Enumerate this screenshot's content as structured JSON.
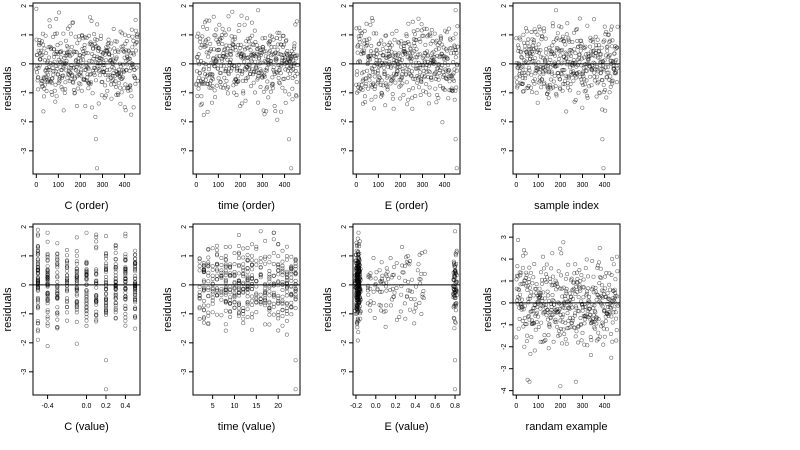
{
  "figure": {
    "point_color": "#000000",
    "panel_layout": "2x4 grid"
  },
  "chart_data": [
    {
      "type": "scatter",
      "xlabel": "C (order)",
      "ylabel": "residuals",
      "xlim": [
        -15,
        470
      ],
      "ylim": [
        -3.8,
        2.1
      ],
      "xticks": [
        0,
        100,
        200,
        300,
        400
      ],
      "xtick_labels": [
        "0",
        "100",
        "200",
        "300",
        "400"
      ],
      "yticks": [
        -3,
        -2,
        -1,
        0,
        1,
        2
      ],
      "ytick_labels": [
        "-3",
        "-2",
        "-1",
        "0",
        "1",
        "2"
      ],
      "reference_line_y": 0,
      "points": {
        "generator": "sequential",
        "n": 460,
        "spread": 0.65,
        "seed": 11
      },
      "outliers": [
        [
          0,
          1.9
        ],
        [
          270,
          -2.6
        ],
        [
          275,
          -3.6
        ]
      ]
    },
    {
      "type": "scatter",
      "xlabel": "time (order)",
      "ylabel": "residuals",
      "xlim": [
        -15,
        470
      ],
      "ylim": [
        -3.8,
        2.1
      ],
      "xticks": [
        0,
        100,
        200,
        300,
        400
      ],
      "xtick_labels": [
        "0",
        "100",
        "200",
        "300",
        "400"
      ],
      "yticks": [
        -3,
        -2,
        -1,
        0,
        1,
        2
      ],
      "ytick_labels": [
        "-3",
        "-2",
        "-1",
        "0",
        "1",
        "2"
      ],
      "reference_line_y": 0,
      "points": {
        "generator": "sequential",
        "n": 460,
        "spread": 0.65,
        "seed": 23
      },
      "outliers": [
        [
          280,
          1.85
        ],
        [
          420,
          -2.6
        ],
        [
          430,
          -3.6
        ]
      ]
    },
    {
      "type": "scatter",
      "xlabel": "E (order)",
      "ylabel": "residuals",
      "xlim": [
        -15,
        470
      ],
      "ylim": [
        -3.8,
        2.1
      ],
      "xticks": [
        0,
        100,
        200,
        300,
        400
      ],
      "xtick_labels": [
        "0",
        "100",
        "200",
        "300",
        "400"
      ],
      "yticks": [
        -3,
        -2,
        -1,
        0,
        1,
        2
      ],
      "ytick_labels": [
        "-3",
        "-2",
        "-1",
        "0",
        "1",
        "2"
      ],
      "reference_line_y": 0,
      "points": {
        "generator": "sequential",
        "n": 460,
        "spread": 0.65,
        "seed": 37
      },
      "outliers": [
        [
          450,
          1.85
        ],
        [
          450,
          -2.6
        ],
        [
          455,
          -3.6
        ]
      ]
    },
    {
      "type": "scatter",
      "xlabel": "sample index",
      "ylabel": "residuals",
      "xlim": [
        -15,
        470
      ],
      "ylim": [
        -3.8,
        2.1
      ],
      "xticks": [
        0,
        100,
        200,
        300,
        400
      ],
      "xtick_labels": [
        "0",
        "100",
        "200",
        "300",
        "400"
      ],
      "yticks": [
        -3,
        -2,
        -1,
        0,
        1,
        2
      ],
      "ytick_labels": [
        "-3",
        "-2",
        "-1",
        "0",
        "1",
        "2"
      ],
      "reference_line_y": 0,
      "points": {
        "generator": "sequential",
        "n": 460,
        "spread": 0.65,
        "seed": 51
      },
      "outliers": [
        [
          180,
          1.85
        ],
        [
          390,
          -2.6
        ],
        [
          395,
          -3.6
        ]
      ]
    },
    {
      "type": "scatter",
      "xlabel": "C (value)",
      "ylabel": "residuals",
      "xlim": [
        -0.55,
        0.55
      ],
      "ylim": [
        -3.8,
        2.1
      ],
      "xticks": [
        -0.4,
        0.0,
        0.2,
        0.4
      ],
      "xtick_labels": [
        "-0.4",
        "0.0",
        "0.2",
        "0.4"
      ],
      "yticks": [
        -3,
        -2,
        -1,
        0,
        1,
        2
      ],
      "ytick_labels": [
        "-3",
        "-2",
        "-1",
        "0",
        "1",
        "2"
      ],
      "reference_line_y": 0,
      "points": {
        "generator": "discrete",
        "n": 460,
        "spread": 0.65,
        "seed": 67,
        "levels": [
          -0.5,
          -0.4,
          -0.3,
          -0.2,
          -0.1,
          0.0,
          0.1,
          0.2,
          0.3,
          0.4,
          0.5
        ]
      },
      "outliers": [
        [
          -0.5,
          1.9
        ],
        [
          0.1,
          1.5
        ],
        [
          0.2,
          -2.6
        ],
        [
          0.2,
          -3.6
        ]
      ]
    },
    {
      "type": "scatter",
      "xlabel": "time (value)",
      "ylabel": "residuals",
      "xlim": [
        0.5,
        25
      ],
      "ylim": [
        -3.8,
        2.1
      ],
      "xticks": [
        5,
        10,
        15,
        20
      ],
      "xtick_labels": [
        "5",
        "10",
        "15",
        "20"
      ],
      "yticks": [
        -3,
        -2,
        -1,
        0,
        1,
        2
      ],
      "ytick_labels": [
        "-3",
        "-2",
        "-1",
        "0",
        "1",
        "2"
      ],
      "reference_line_y": 0,
      "points": {
        "generator": "discrete",
        "n": 460,
        "spread": 0.65,
        "seed": 79,
        "levels": [
          2,
          3,
          4,
          5,
          6,
          7,
          8,
          9,
          10,
          11,
          12,
          13,
          14,
          15,
          16,
          17,
          18,
          19,
          20,
          21,
          22,
          23,
          24
        ]
      },
      "outliers": [
        [
          16,
          1.85
        ],
        [
          24,
          -2.6
        ],
        [
          24,
          -3.6
        ]
      ]
    },
    {
      "type": "scatter",
      "xlabel": "E (value)",
      "ylabel": "residuals",
      "xlim": [
        -0.23,
        0.85
      ],
      "ylim": [
        -3.8,
        2.1
      ],
      "xticks": [
        -0.2,
        0.0,
        0.2,
        0.4,
        0.6,
        0.8
      ],
      "xtick_labels": [
        "-0.2",
        "0.0",
        "0.2",
        "0.4",
        "0.6",
        "0.8"
      ],
      "yticks": [
        -3,
        -2,
        -1,
        0,
        1,
        2
      ],
      "ytick_labels": [
        "-3",
        "-2",
        "-1",
        "0",
        "1",
        "2"
      ],
      "reference_line_y": 0,
      "points": {
        "generator": "clustered",
        "n": 460,
        "spread": 0.65,
        "seed": 97
      },
      "outliers": [
        [
          0.8,
          1.85
        ],
        [
          0.8,
          -2.6
        ],
        [
          0.8,
          -3.6
        ]
      ]
    },
    {
      "type": "scatter",
      "xlabel": "randam example",
      "ylabel": "residuals",
      "xlim": [
        -15,
        470
      ],
      "ylim": [
        -4.2,
        3.6
      ],
      "xticks": [
        0,
        100,
        200,
        300,
        400
      ],
      "xtick_labels": [
        "0",
        "100",
        "200",
        "300",
        "400"
      ],
      "yticks": [
        -4,
        -3,
        -2,
        -1,
        0,
        1,
        2,
        3
      ],
      "ytick_labels": [
        "-4",
        "-3",
        "-2",
        "-1",
        "0",
        "1",
        "2",
        "3"
      ],
      "reference_line_y": 0,
      "points": {
        "generator": "sequential",
        "n": 460,
        "spread": 1.0,
        "seed": 113
      },
      "outliers": [
        [
          60,
          -3.6
        ],
        [
          200,
          -3.8
        ],
        [
          270,
          -3.6
        ]
      ]
    }
  ]
}
